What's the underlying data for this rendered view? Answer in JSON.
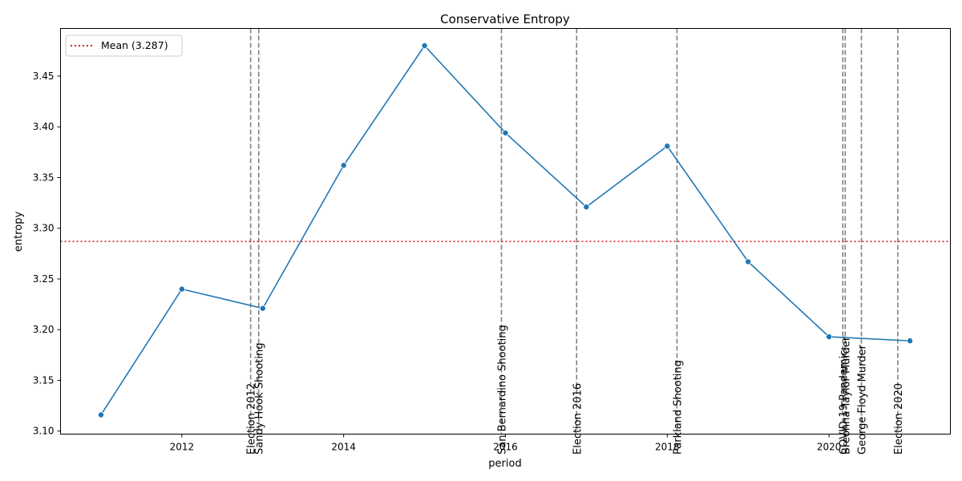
{
  "chart_data": {
    "type": "line",
    "title": "Conservative Entropy",
    "xlabel": "period",
    "ylabel": "entropy",
    "xlim": [
      2010.5,
      2021.5
    ],
    "ylim": [
      3.097,
      3.497
    ],
    "x_ticks": [
      2012,
      2014,
      2016,
      2018,
      2020
    ],
    "y_ticks": [
      3.1,
      3.15,
      3.2,
      3.25,
      3.3,
      3.35,
      3.4,
      3.45
    ],
    "grid": false,
    "legend_position": "top-left",
    "series": [
      {
        "color": "#1f77b4",
        "marker": "circle",
        "x": [
          2011,
          2012,
          2013,
          2014,
          2015,
          2016,
          2017,
          2018,
          2019,
          2020,
          2021
        ],
        "y": [
          3.116,
          3.24,
          3.221,
          3.362,
          3.48,
          3.394,
          3.321,
          3.381,
          3.267,
          3.193,
          3.189
        ]
      }
    ],
    "mean_line": {
      "value": 3.287,
      "label": "Mean (3.287)",
      "color": "#d62728",
      "style": "dotted"
    },
    "events": [
      {
        "x": 2012.85,
        "label": "Election 2012"
      },
      {
        "x": 2012.95,
        "label": "Sandy Hook Shooting"
      },
      {
        "x": 2015.95,
        "label": "San Bernardino Shooting"
      },
      {
        "x": 2016.88,
        "label": "Election 2016"
      },
      {
        "x": 2018.12,
        "label": "Parkland Shooting"
      },
      {
        "x": 2020.17,
        "label": "COVID-19 Pandemic"
      },
      {
        "x": 2020.2,
        "label": "Breonna Taylor Murder"
      },
      {
        "x": 2020.4,
        "label": "George Floyd Murder"
      },
      {
        "x": 2020.85,
        "label": "Election 2020"
      }
    ],
    "colors": {
      "event_line": "#808080",
      "axis": "#000000"
    }
  }
}
